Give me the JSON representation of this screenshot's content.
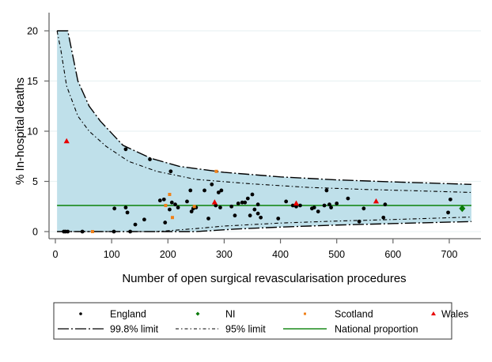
{
  "chart_data": {
    "type": "scatter",
    "title": "",
    "xlabel": "Number of open surgical revascularisation procedures",
    "ylabel": "% In-hospital deaths",
    "xlim": [
      0,
      760
    ],
    "ylim": [
      0,
      20
    ],
    "xticks": [
      0,
      100,
      200,
      300,
      400,
      500,
      600,
      700
    ],
    "yticks": [
      0,
      5,
      10,
      15,
      20
    ],
    "grid": true,
    "legend_position": "bottom",
    "national_proportion": 2.6,
    "colors": {
      "band": "#bfe0ea",
      "england": "#000000",
      "ni": "#0a7a0a",
      "scotland": "#f08018",
      "wales": "#e80000",
      "national": "#1a8a1a",
      "limit": "#000000"
    },
    "limits": {
      "upper_998": [
        [
          3,
          20
        ],
        [
          22,
          20
        ],
        [
          40,
          15
        ],
        [
          60,
          12.5
        ],
        [
          80,
          11
        ],
        [
          120,
          8.6
        ],
        [
          170,
          7.3
        ],
        [
          220,
          6.5
        ],
        [
          300,
          5.9
        ],
        [
          400,
          5.45
        ],
        [
          500,
          5.15
        ],
        [
          600,
          4.95
        ],
        [
          760,
          4.7
        ]
      ],
      "upper_95": [
        [
          3,
          20
        ],
        [
          10,
          18
        ],
        [
          20,
          14.5
        ],
        [
          40,
          11.5
        ],
        [
          60,
          10
        ],
        [
          90,
          8.5
        ],
        [
          130,
          7.0
        ],
        [
          180,
          6.0
        ],
        [
          250,
          5.2
        ],
        [
          350,
          4.75
        ],
        [
          450,
          4.4
        ],
        [
          550,
          4.2
        ],
        [
          650,
          4.05
        ],
        [
          760,
          3.9
        ]
      ],
      "lower_95": [
        [
          3,
          0
        ],
        [
          180,
          0
        ],
        [
          250,
          0.3
        ],
        [
          300,
          0.55
        ],
        [
          400,
          0.85
        ],
        [
          500,
          1.05
        ],
        [
          600,
          1.2
        ],
        [
          760,
          1.45
        ]
      ],
      "lower_998": [
        [
          3,
          0
        ],
        [
          250,
          0
        ],
        [
          320,
          0.25
        ],
        [
          400,
          0.45
        ],
        [
          500,
          0.65
        ],
        [
          600,
          0.8
        ],
        [
          760,
          1.0
        ]
      ]
    },
    "series": [
      {
        "name": "England",
        "marker": "circle",
        "points": [
          [
            15,
            0
          ],
          [
            18,
            0
          ],
          [
            22,
            0
          ],
          [
            48,
            0
          ],
          [
            104,
            0
          ],
          [
            133,
            0
          ],
          [
            105,
            2.3
          ],
          [
            125,
            2.4
          ],
          [
            128,
            1.9
          ],
          [
            142,
            0.7
          ],
          [
            158,
            1.2
          ],
          [
            125,
            8.2
          ],
          [
            168,
            7.2
          ],
          [
            186,
            3.1
          ],
          [
            193,
            3.2
          ],
          [
            195,
            0.9
          ],
          [
            207,
            2.9
          ],
          [
            213,
            2.7
          ],
          [
            205,
            6.0
          ],
          [
            218,
            2.4
          ],
          [
            203,
            2.2
          ],
          [
            234,
            3.0
          ],
          [
            240,
            4.1
          ],
          [
            242,
            2.0
          ],
          [
            245,
            2.3
          ],
          [
            250,
            2.4
          ],
          [
            265,
            4.1
          ],
          [
            272,
            1.3
          ],
          [
            278,
            4.7
          ],
          [
            285,
            2.6
          ],
          [
            290,
            3.9
          ],
          [
            293,
            2.4
          ],
          [
            295,
            4.1
          ],
          [
            313,
            2.5
          ],
          [
            319,
            1.6
          ],
          [
            325,
            2.8
          ],
          [
            332,
            2.9
          ],
          [
            337,
            2.9
          ],
          [
            342,
            3.3
          ],
          [
            346,
            1.6
          ],
          [
            350,
            3.7
          ],
          [
            354,
            2.2
          ],
          [
            360,
            1.8
          ],
          [
            365,
            1.4
          ],
          [
            360,
            2.7
          ],
          [
            396,
            1.3
          ],
          [
            410,
            3.0
          ],
          [
            422,
            2.6
          ],
          [
            428,
            2.5
          ],
          [
            435,
            2.6
          ],
          [
            456,
            2.3
          ],
          [
            460,
            2.4
          ],
          [
            467,
            2.0
          ],
          [
            478,
            2.6
          ],
          [
            482,
            4.1
          ],
          [
            487,
            2.7
          ],
          [
            490,
            2.4
          ],
          [
            500,
            2.8
          ],
          [
            520,
            3.3
          ],
          [
            540,
            1.0
          ],
          [
            548,
            2.3
          ],
          [
            586,
            2.7
          ],
          [
            583,
            1.4
          ],
          [
            698,
            1.9
          ],
          [
            702,
            3.2
          ]
        ]
      },
      {
        "name": "NI",
        "marker": "diamond",
        "points": [
          [
            723,
            2.3
          ]
        ]
      },
      {
        "name": "Scotland",
        "marker": "square",
        "points": [
          [
            66,
            0
          ],
          [
            196,
            2.6
          ],
          [
            203,
            3.7
          ],
          [
            208,
            1.4
          ],
          [
            247,
            2.5
          ],
          [
            286,
            6.0
          ]
        ]
      },
      {
        "name": "Wales",
        "marker": "triangle",
        "points": [
          [
            20,
            9.0
          ],
          [
            283,
            2.9
          ],
          [
            428,
            2.8
          ],
          [
            570,
            3.0
          ]
        ]
      }
    ],
    "legend": [
      {
        "label": "England",
        "key": "england"
      },
      {
        "label": "NI",
        "key": "ni"
      },
      {
        "label": "Scotland",
        "key": "scotland"
      },
      {
        "label": "Wales",
        "key": "wales"
      },
      {
        "label": "99.8% limit",
        "key": "limit998"
      },
      {
        "label": "95% limit",
        "key": "limit95"
      },
      {
        "label": "National proportion",
        "key": "national"
      }
    ]
  }
}
